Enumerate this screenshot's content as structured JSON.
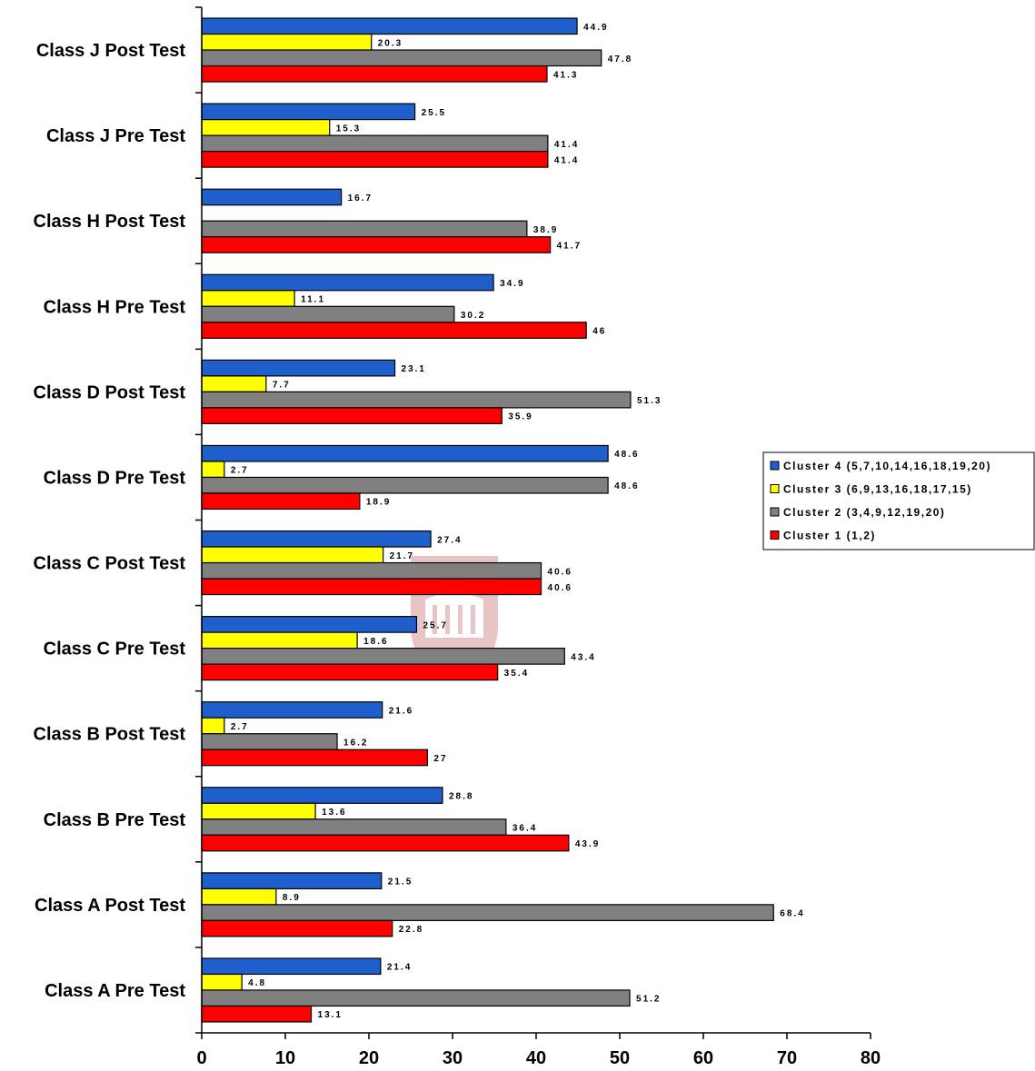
{
  "chart_data": {
    "type": "bar",
    "orientation": "horizontal",
    "categories": [
      "Class A Pre Test",
      "Class A Post Test",
      "Class B Pre Test",
      "Class B Post Test",
      "Class C Pre Test",
      "Class C Post Test",
      "Class D Pre Test",
      "Class D Post Test",
      "Class H Pre Test",
      "Class H Post Test",
      "Class J Pre Test",
      "Class J Post Test"
    ],
    "series": [
      {
        "name": "Cluster 4 (5,7,10,14,16,18,19,20)",
        "color": "#1f5fcc",
        "values": [
          21.4,
          21.5,
          28.8,
          21.6,
          25.7,
          27.4,
          48.6,
          23.1,
          34.9,
          16.7,
          25.5,
          44.9
        ]
      },
      {
        "name": "Cluster 3 (6,9,13,16,18,17,15)",
        "color": "#ffff00",
        "values": [
          4.8,
          8.9,
          13.6,
          2.7,
          18.6,
          21.7,
          2.7,
          7.7,
          11.1,
          null,
          15.3,
          20.3
        ]
      },
      {
        "name": "Cluster 2 (3,4,9,12,19,20)",
        "color": "#808080",
        "values": [
          51.2,
          68.4,
          36.4,
          16.2,
          43.4,
          40.6,
          48.6,
          51.3,
          30.2,
          38.9,
          41.4,
          47.8
        ]
      },
      {
        "name": "Cluster 1 (1,2)",
        "color": "#ff0000",
        "values": [
          13.1,
          22.8,
          43.9,
          27,
          35.4,
          40.6,
          18.9,
          35.9,
          46,
          41.7,
          41.4,
          41.3
        ]
      }
    ],
    "xticks": [
      0,
      10,
      20,
      30,
      40,
      50,
      60,
      70,
      80
    ],
    "xlim": [
      0,
      80
    ],
    "title": "",
    "xlabel": "",
    "ylabel": "",
    "grid": false,
    "legend_position": "right"
  }
}
